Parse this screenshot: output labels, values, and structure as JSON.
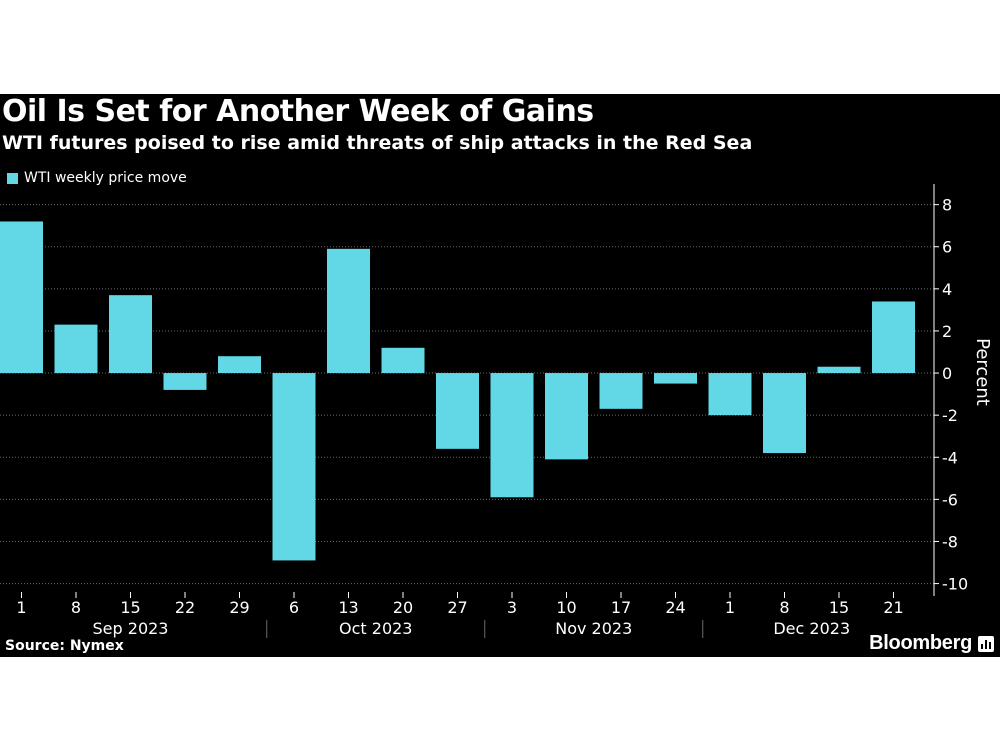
{
  "title": "Oil Is Set for Another Week of Gains",
  "subtitle": "WTI futures poised to rise amid threats of ship attacks in the Red Sea",
  "source": "Source: Nymex",
  "brand": "Bloomberg",
  "colors": {
    "bar": "#62d8e6",
    "background": "#000000",
    "text": "#ffffff",
    "grid": "#6b6b6b"
  },
  "chart_data": {
    "type": "bar",
    "title": "Oil Is Set for Another Week of Gains",
    "subtitle": "WTI futures poised to rise amid threats of ship attacks in the Red Sea",
    "categories": [
      "1",
      "8",
      "15",
      "22",
      "29",
      "6",
      "13",
      "20",
      "27",
      "3",
      "10",
      "17",
      "24",
      "1",
      "8",
      "15",
      "21"
    ],
    "month_groups": [
      {
        "label": "Sep 2023",
        "start": 0,
        "end": 4
      },
      {
        "label": "Oct 2023",
        "start": 5,
        "end": 8
      },
      {
        "label": "Nov 2023",
        "start": 9,
        "end": 12
      },
      {
        "label": "Dec 2023",
        "start": 13,
        "end": 16
      }
    ],
    "series": [
      {
        "name": "WTI weekly price move",
        "values": [
          7.2,
          2.3,
          3.7,
          -0.8,
          0.8,
          -8.9,
          5.9,
          1.2,
          -3.6,
          -5.9,
          -4.1,
          -1.7,
          -0.5,
          -2.0,
          -3.8,
          0.3,
          3.4
        ]
      }
    ],
    "xlabel": "",
    "ylabel": "Percent",
    "ylim": [
      -10.4,
      8.6
    ],
    "yticks": [
      8,
      6,
      4,
      2,
      0,
      -2,
      -4,
      -6,
      -8,
      -10
    ],
    "ytick_labels": [
      "8",
      "6",
      "4",
      "2",
      "0",
      "-2",
      "-4",
      "-6",
      "-8",
      "-10"
    ],
    "grid": true,
    "legend": "top-left"
  }
}
